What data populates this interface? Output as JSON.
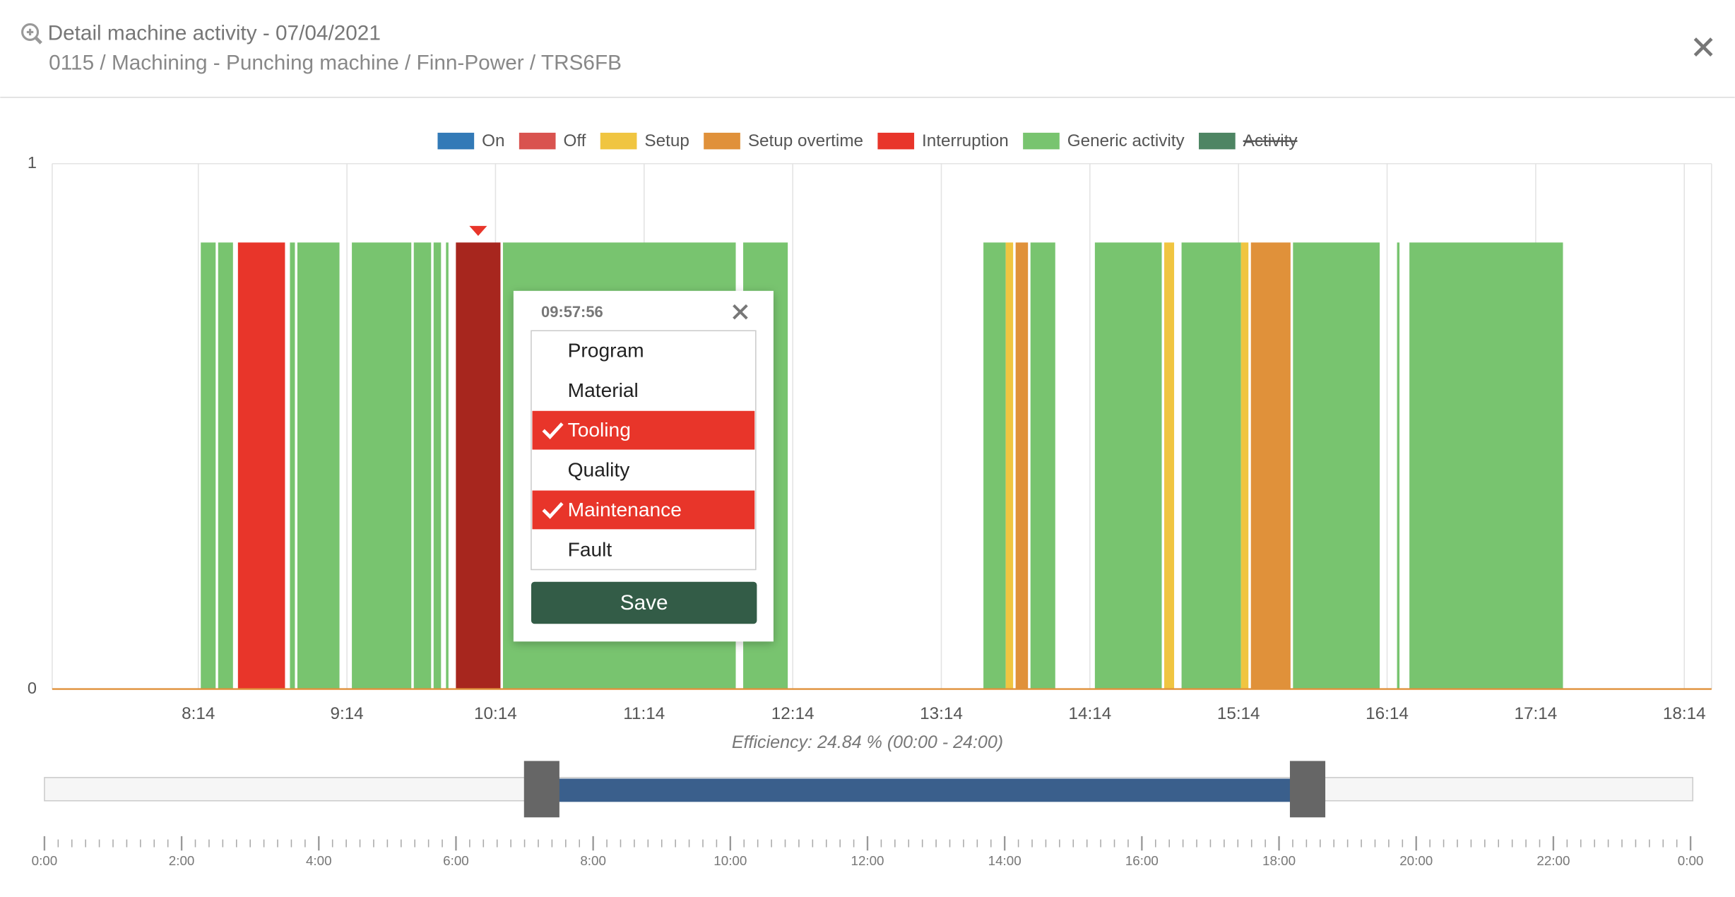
{
  "header": {
    "title": "Detail machine activity - 07/04/2021",
    "subtitle": "0115 / Machining - Punching machine / Finn-Power / TRS6FB"
  },
  "chart_data": {
    "type": "timeline",
    "series": [
      {
        "name": "On",
        "color": "#337ab7"
      },
      {
        "name": "Off",
        "color": "#d9534f"
      },
      {
        "name": "Setup",
        "color": "#f0c541"
      },
      {
        "name": "Setup overtime",
        "color": "#e0913a"
      },
      {
        "name": "Interruption",
        "color": "#e8352a"
      },
      {
        "name": "Generic activity",
        "color": "#78c46f"
      },
      {
        "name": "Activity",
        "color": "#4e8563",
        "hidden": true
      }
    ],
    "level": 0.85,
    "segments": [
      {
        "status": 5,
        "start": 495,
        "end": 501
      },
      {
        "status": 5,
        "start": 502,
        "end": 508
      },
      {
        "status": 4,
        "start": 510,
        "end": 529
      },
      {
        "status": 5,
        "start": 531,
        "end": 533
      },
      {
        "status": 5,
        "start": 534,
        "end": 551
      },
      {
        "status": 5,
        "start": 556,
        "end": 580
      },
      {
        "status": 5,
        "start": 581,
        "end": 588
      },
      {
        "status": 5,
        "start": 589,
        "end": 592
      },
      {
        "status": 5,
        "start": 594,
        "end": 595
      },
      {
        "status": 4,
        "start": 598,
        "end": 616,
        "selected": true
      },
      {
        "status": 5,
        "start": 617,
        "end": 711
      },
      {
        "status": 5,
        "start": 714,
        "end": 732
      },
      {
        "status": 5,
        "start": 811,
        "end": 820
      },
      {
        "status": 2,
        "start": 820,
        "end": 823
      },
      {
        "status": 3,
        "start": 824,
        "end": 829
      },
      {
        "status": 5,
        "start": 830,
        "end": 840
      },
      {
        "status": 5,
        "start": 856,
        "end": 883
      },
      {
        "status": 2,
        "start": 884,
        "end": 888
      },
      {
        "status": 5,
        "start": 891,
        "end": 915
      },
      {
        "status": 2,
        "start": 915,
        "end": 918
      },
      {
        "status": 3,
        "start": 919,
        "end": 935
      },
      {
        "status": 5,
        "start": 936,
        "end": 971
      },
      {
        "status": 5,
        "start": 978,
        "end": 979
      },
      {
        "status": 5,
        "start": 983,
        "end": 1045
      }
    ],
    "xlim": [
      435,
      1105
    ],
    "xticks": [
      {
        "value": 494,
        "label": "8:14"
      },
      {
        "value": 554,
        "label": "9:14"
      },
      {
        "value": 614,
        "label": "10:14"
      },
      {
        "value": 674,
        "label": "11:14"
      },
      {
        "value": 734,
        "label": "12:14"
      },
      {
        "value": 794,
        "label": "13:14"
      },
      {
        "value": 854,
        "label": "14:14"
      },
      {
        "value": 914,
        "label": "15:14"
      },
      {
        "value": 974,
        "label": "16:14"
      },
      {
        "value": 1034,
        "label": "17:14"
      },
      {
        "value": 1094,
        "label": "18:14"
      }
    ],
    "ylim": [
      0,
      1
    ],
    "yticks": [
      0,
      1
    ],
    "grid": true,
    "annotation": "Efficiency: 24.84 % (00:00 - 24:00)",
    "navigator": {
      "xlim": [
        0,
        1440
      ],
      "xticks": [
        {
          "value": 0,
          "label": "0:00"
        },
        {
          "value": 120,
          "label": "2:00"
        },
        {
          "value": 240,
          "label": "4:00"
        },
        {
          "value": 360,
          "label": "6:00"
        },
        {
          "value": 480,
          "label": "8:00"
        },
        {
          "value": 600,
          "label": "10:00"
        },
        {
          "value": 720,
          "label": "12:00"
        },
        {
          "value": 840,
          "label": "14:00"
        },
        {
          "value": 960,
          "label": "16:00"
        },
        {
          "value": 1080,
          "label": "18:00"
        },
        {
          "value": 1200,
          "label": "20:00"
        },
        {
          "value": 1320,
          "label": "22:00"
        },
        {
          "value": 1440,
          "label": "0:00"
        }
      ],
      "minor_ticks": [
        0,
        12,
        24,
        36,
        48,
        60,
        72,
        84,
        96,
        108,
        120,
        132,
        144,
        156,
        168,
        180,
        192,
        204,
        216,
        228,
        240,
        252,
        264,
        276,
        288,
        300,
        312,
        324,
        336,
        348,
        360,
        372,
        384,
        396,
        408,
        420,
        432,
        444,
        456,
        468,
        480,
        492,
        504,
        516,
        528,
        540,
        552,
        564,
        576,
        588,
        600,
        612,
        624,
        636,
        648,
        660,
        672,
        684,
        696,
        708,
        720,
        732,
        744,
        756,
        768,
        780,
        792,
        804,
        816,
        828,
        840,
        852,
        864,
        876,
        888,
        900,
        912,
        924,
        936,
        948,
        960,
        972,
        984,
        996,
        1008,
        1020,
        1032,
        1044,
        1056,
        1068,
        1080,
        1092,
        1104,
        1116,
        1128,
        1140,
        1152,
        1164,
        1176,
        1188,
        1200,
        1212,
        1224,
        1236,
        1248,
        1260,
        1272,
        1284,
        1296,
        1308,
        1320,
        1332,
        1344,
        1356,
        1368,
        1380,
        1392,
        1404,
        1416,
        1428,
        1440
      ]
    }
  },
  "popup": {
    "time": "09:57:56",
    "options": [
      {
        "label": "Program",
        "checked": false
      },
      {
        "label": "Material",
        "checked": false
      },
      {
        "label": "Tooling",
        "checked": true
      },
      {
        "label": "Quality",
        "checked": false
      },
      {
        "label": "Maintenance",
        "checked": true
      },
      {
        "label": "Fault",
        "checked": false
      }
    ],
    "button": "Save"
  }
}
